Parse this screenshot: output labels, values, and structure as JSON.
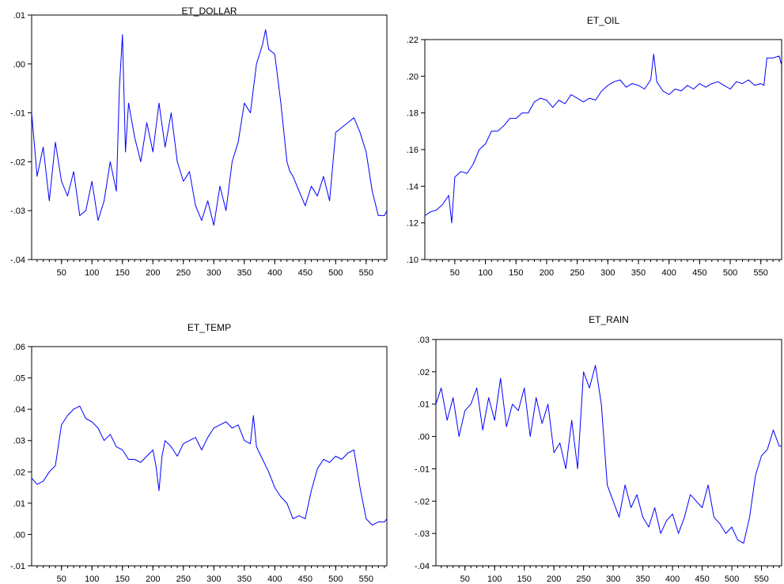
{
  "chart_data": [
    {
      "type": "line",
      "title": "ET_DOLLAR",
      "xlabel": "",
      "ylabel": "",
      "xlim": [
        1,
        584
      ],
      "ylim": [
        -0.04,
        0.01
      ],
      "xticks": [
        50,
        100,
        150,
        200,
        250,
        300,
        350,
        400,
        450,
        500,
        550
      ],
      "yticks": [
        -0.04,
        -0.03,
        -0.02,
        -0.01,
        0.0,
        0.01
      ],
      "ytick_labels": [
        "-.04",
        "-.03",
        "-.02",
        "-.01",
        ".00",
        ".01"
      ],
      "grid": false,
      "legend": "none",
      "series": [
        {
          "color": "#0000ff",
          "x": [
            1,
            10,
            20,
            30,
            40,
            50,
            60,
            70,
            80,
            90,
            100,
            110,
            120,
            130,
            140,
            145,
            150,
            155,
            160,
            170,
            180,
            190,
            200,
            210,
            220,
            230,
            240,
            250,
            260,
            270,
            280,
            290,
            300,
            310,
            320,
            330,
            340,
            350,
            360,
            370,
            380,
            385,
            390,
            400,
            410,
            420,
            425,
            430,
            440,
            450,
            460,
            470,
            480,
            490,
            500,
            510,
            520,
            530,
            540,
            550,
            560,
            570,
            580,
            584
          ],
          "y": [
            -0.01,
            -0.023,
            -0.017,
            -0.028,
            -0.016,
            -0.024,
            -0.027,
            -0.022,
            -0.031,
            -0.03,
            -0.024,
            -0.032,
            -0.028,
            -0.02,
            -0.026,
            -0.005,
            0.006,
            -0.018,
            -0.008,
            -0.015,
            -0.02,
            -0.012,
            -0.018,
            -0.008,
            -0.017,
            -0.01,
            -0.02,
            -0.024,
            -0.022,
            -0.029,
            -0.032,
            -0.028,
            -0.033,
            -0.025,
            -0.03,
            -0.02,
            -0.016,
            -0.008,
            -0.01,
            0.0,
            0.004,
            0.007,
            0.003,
            0.002,
            -0.008,
            -0.02,
            -0.022,
            -0.023,
            -0.026,
            -0.029,
            -0.025,
            -0.027,
            -0.023,
            -0.028,
            -0.014,
            -0.013,
            -0.012,
            -0.011,
            -0.014,
            -0.018,
            -0.026,
            -0.031,
            -0.031,
            -0.03
          ]
        }
      ]
    },
    {
      "type": "line",
      "title": "ET_OIL",
      "xlabel": "",
      "ylabel": "",
      "xlim": [
        1,
        584
      ],
      "ylim": [
        0.1,
        0.22
      ],
      "xticks": [
        50,
        100,
        150,
        200,
        250,
        300,
        350,
        400,
        450,
        500,
        550
      ],
      "yticks": [
        0.1,
        0.12,
        0.14,
        0.16,
        0.18,
        0.2,
        0.22
      ],
      "ytick_labels": [
        ".10",
        ".12",
        ".14",
        ".16",
        ".18",
        ".20",
        ".22"
      ],
      "grid": false,
      "legend": "none",
      "series": [
        {
          "color": "#0000ff",
          "x": [
            1,
            10,
            20,
            30,
            40,
            45,
            50,
            60,
            70,
            80,
            90,
            100,
            110,
            120,
            130,
            140,
            150,
            160,
            170,
            180,
            190,
            200,
            210,
            220,
            230,
            240,
            250,
            260,
            270,
            280,
            290,
            300,
            310,
            320,
            330,
            340,
            350,
            360,
            370,
            375,
            380,
            390,
            400,
            410,
            420,
            430,
            440,
            450,
            460,
            470,
            480,
            490,
            500,
            510,
            520,
            530,
            540,
            550,
            555,
            560,
            570,
            580,
            584
          ],
          "y": [
            0.124,
            0.126,
            0.127,
            0.13,
            0.135,
            0.12,
            0.145,
            0.148,
            0.147,
            0.152,
            0.16,
            0.163,
            0.17,
            0.17,
            0.173,
            0.177,
            0.177,
            0.18,
            0.18,
            0.186,
            0.188,
            0.187,
            0.183,
            0.187,
            0.185,
            0.19,
            0.188,
            0.186,
            0.188,
            0.187,
            0.192,
            0.195,
            0.197,
            0.198,
            0.194,
            0.196,
            0.195,
            0.193,
            0.198,
            0.212,
            0.197,
            0.192,
            0.19,
            0.193,
            0.192,
            0.195,
            0.193,
            0.196,
            0.194,
            0.196,
            0.197,
            0.195,
            0.193,
            0.197,
            0.196,
            0.198,
            0.195,
            0.196,
            0.195,
            0.21,
            0.21,
            0.211,
            0.206
          ]
        }
      ]
    },
    {
      "type": "line",
      "title": "ET_TEMP",
      "xlabel": "",
      "ylabel": "",
      "xlim": [
        1,
        584
      ],
      "ylim": [
        -0.01,
        0.06
      ],
      "xticks": [
        50,
        100,
        150,
        200,
        250,
        300,
        350,
        400,
        450,
        500,
        550
      ],
      "yticks": [
        -0.01,
        0.0,
        0.01,
        0.02,
        0.03,
        0.04,
        0.05,
        0.06
      ],
      "ytick_labels": [
        "-.01",
        ".00",
        ".01",
        ".02",
        ".03",
        ".04",
        ".05",
        ".06"
      ],
      "grid": false,
      "legend": "none",
      "series": [
        {
          "color": "#0000ff",
          "x": [
            1,
            10,
            20,
            30,
            40,
            50,
            60,
            70,
            80,
            90,
            100,
            110,
            120,
            130,
            140,
            150,
            160,
            170,
            180,
            190,
            200,
            205,
            210,
            215,
            220,
            230,
            240,
            250,
            260,
            270,
            280,
            290,
            300,
            310,
            320,
            330,
            340,
            350,
            360,
            365,
            370,
            380,
            390,
            400,
            410,
            420,
            430,
            440,
            450,
            460,
            470,
            480,
            490,
            500,
            510,
            520,
            530,
            540,
            550,
            560,
            570,
            580,
            584
          ],
          "y": [
            0.018,
            0.016,
            0.017,
            0.02,
            0.022,
            0.035,
            0.038,
            0.04,
            0.041,
            0.037,
            0.036,
            0.034,
            0.03,
            0.032,
            0.028,
            0.027,
            0.024,
            0.024,
            0.023,
            0.025,
            0.027,
            0.022,
            0.014,
            0.025,
            0.03,
            0.028,
            0.025,
            0.029,
            0.03,
            0.031,
            0.027,
            0.031,
            0.034,
            0.035,
            0.036,
            0.034,
            0.035,
            0.03,
            0.029,
            0.038,
            0.028,
            0.024,
            0.02,
            0.015,
            0.012,
            0.01,
            0.005,
            0.006,
            0.005,
            0.014,
            0.021,
            0.024,
            0.023,
            0.025,
            0.024,
            0.026,
            0.027,
            0.015,
            0.005,
            0.003,
            0.004,
            0.004,
            0.005
          ]
        }
      ]
    },
    {
      "type": "line",
      "title": "ET_RAIN",
      "xlabel": "",
      "ylabel": "",
      "xlim": [
        1,
        584
      ],
      "ylim": [
        -0.04,
        0.03
      ],
      "xticks": [
        50,
        100,
        150,
        200,
        250,
        300,
        350,
        400,
        450,
        500,
        550
      ],
      "yticks": [
        -0.04,
        -0.03,
        -0.02,
        -0.01,
        0.0,
        0.01,
        0.02,
        0.03
      ],
      "ytick_labels": [
        "-.04",
        "-.03",
        "-.02",
        "-.01",
        ".00",
        ".01",
        ".02",
        ".03"
      ],
      "grid": false,
      "legend": "none",
      "series": [
        {
          "color": "#0000ff",
          "x": [
            1,
            10,
            20,
            30,
            40,
            50,
            60,
            70,
            80,
            90,
            100,
            110,
            120,
            130,
            140,
            150,
            160,
            170,
            180,
            190,
            200,
            210,
            220,
            230,
            240,
            250,
            260,
            270,
            280,
            290,
            300,
            310,
            320,
            330,
            340,
            350,
            360,
            370,
            380,
            390,
            400,
            410,
            420,
            430,
            440,
            450,
            460,
            470,
            480,
            490,
            500,
            510,
            520,
            530,
            540,
            550,
            560,
            570,
            580,
            584
          ],
          "y": [
            0.01,
            0.015,
            0.005,
            0.012,
            0.0,
            0.008,
            0.01,
            0.015,
            0.002,
            0.012,
            0.005,
            0.018,
            0.003,
            0.01,
            0.008,
            0.015,
            0.0,
            0.012,
            0.004,
            0.01,
            -0.005,
            -0.002,
            -0.01,
            0.005,
            -0.01,
            0.02,
            0.015,
            0.022,
            0.01,
            -0.015,
            -0.02,
            -0.025,
            -0.015,
            -0.022,
            -0.018,
            -0.025,
            -0.028,
            -0.022,
            -0.03,
            -0.026,
            -0.024,
            -0.03,
            -0.025,
            -0.018,
            -0.02,
            -0.022,
            -0.015,
            -0.025,
            -0.027,
            -0.03,
            -0.028,
            -0.032,
            -0.033,
            -0.025,
            -0.012,
            -0.006,
            -0.004,
            0.002,
            -0.003,
            -0.003
          ]
        }
      ]
    }
  ]
}
